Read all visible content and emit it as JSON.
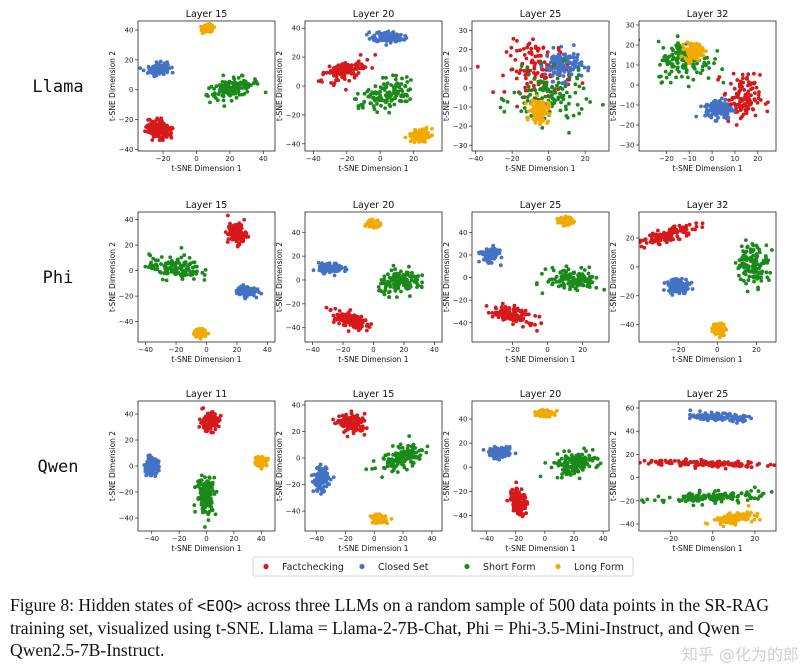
{
  "caption": {
    "prefix": "Figure 8: Hidden states of ",
    "token": "<EOQ>",
    "rest": " across three LLMs on a random sample of 500 data points in the SR-RAG training set, visualized using t-SNE. Llama = Llama-2-7B-Chat, Phi = Phi-3.5-Mini-Instruct, and Qwen = Qwen2.5-7B-Instruct."
  },
  "watermark": "知乎 @化为的郎",
  "chart_data": {
    "type": "scatter",
    "xlabel": "t-SNE Dimension 1",
    "ylabel": "t-SNE Dimension 2",
    "legend": [
      {
        "name": "Factchecking",
        "color": "#d7191c"
      },
      {
        "name": "Closed Set",
        "color": "#4472c4"
      },
      {
        "name": "Short Form",
        "color": "#1a8a1a"
      },
      {
        "name": "Long Form",
        "color": "#f2a900"
      }
    ],
    "rows": [
      {
        "model": "Llama",
        "panels": [
          {
            "title": "Layer 15",
            "xlim": [
              -35,
              47
            ],
            "ylim": [
              -41,
              46
            ],
            "xticks": [
              -20,
              0,
              20,
              40
            ],
            "yticks": [
              -40,
              -20,
              0,
              20,
              40
            ],
            "clusters": [
              {
                "c": 0,
                "cx": -22,
                "cy": -27,
                "rx": 8,
                "ry": 6,
                "n": 125,
                "rot": -25
              },
              {
                "c": 1,
                "cx": -23,
                "cy": 14,
                "rx": 6,
                "ry": 4,
                "n": 125,
                "rot": 10
              },
              {
                "c": 2,
                "cx": 22,
                "cy": 1,
                "rx": 16,
                "ry": 6,
                "n": 125,
                "rot": 15
              },
              {
                "c": 3,
                "cx": 7,
                "cy": 41,
                "rx": 3,
                "ry": 2.5,
                "n": 125,
                "rot": 0
              }
            ]
          },
          {
            "title": "Layer 20",
            "xlim": [
              -45,
              37
            ],
            "ylim": [
              -45,
              45
            ],
            "xticks": [
              -40,
              -20,
              0,
              20
            ],
            "yticks": [
              -40,
              -20,
              0,
              20,
              40
            ],
            "clusters": [
              {
                "c": 0,
                "cx": -22,
                "cy": 10,
                "rx": 14,
                "ry": 6,
                "n": 125,
                "rot": 25
              },
              {
                "c": 1,
                "cx": 5,
                "cy": 34,
                "rx": 9,
                "ry": 4,
                "n": 125,
                "rot": -5
              },
              {
                "c": 2,
                "cx": 3,
                "cy": -7,
                "rx": 16,
                "ry": 10,
                "n": 125,
                "rot": 30
              },
              {
                "c": 3,
                "cx": 24,
                "cy": -34,
                "rx": 6,
                "ry": 4,
                "n": 125,
                "rot": 15
              }
            ]
          },
          {
            "title": "Layer 25",
            "xlim": [
              -42,
              33
            ],
            "ylim": [
              -33,
              35
            ],
            "xticks": [
              -40,
              -20,
              0,
              20
            ],
            "yticks": [
              -30,
              -20,
              -10,
              0,
              10,
              20,
              30
            ],
            "clusters": [
              {
                "c": 0,
                "cx": -5,
                "cy": 10,
                "rx": 18,
                "ry": 14,
                "n": 125,
                "rot": 0
              },
              {
                "c": 1,
                "cx": 8,
                "cy": 12,
                "rx": 10,
                "ry": 8,
                "n": 125,
                "rot": 0
              },
              {
                "c": 2,
                "cx": 0,
                "cy": -6,
                "rx": 20,
                "ry": 14,
                "n": 125,
                "rot": 0
              },
              {
                "c": 3,
                "cx": -5,
                "cy": -12,
                "rx": 5,
                "ry": 6,
                "n": 125,
                "rot": 0
              }
            ]
          },
          {
            "title": "Layer 32",
            "xlim": [
              -32,
              28
            ],
            "ylim": [
              -33,
              32
            ],
            "xticks": [
              -20,
              -10,
              0,
              10,
              20
            ],
            "yticks": [
              -30,
              -20,
              -10,
              0,
              10,
              20,
              30
            ],
            "clusters": [
              {
                "c": 0,
                "cx": 13,
                "cy": -7,
                "rx": 8,
                "ry": 12,
                "n": 125,
                "rot": 0
              },
              {
                "c": 1,
                "cx": 3,
                "cy": -12,
                "rx": 6,
                "ry": 5,
                "n": 125,
                "rot": 0
              },
              {
                "c": 2,
                "cx": -12,
                "cy": 12,
                "rx": 12,
                "ry": 10,
                "n": 125,
                "rot": 0
              },
              {
                "c": 3,
                "cx": -8,
                "cy": 17,
                "rx": 4,
                "ry": 4,
                "n": 125,
                "rot": 0
              }
            ]
          }
        ]
      },
      {
        "model": "Phi",
        "panels": [
          {
            "title": "Layer 15",
            "xlim": [
              -45,
              45
            ],
            "ylim": [
              -56,
              46
            ],
            "xticks": [
              -40,
              -20,
              0,
              20,
              40
            ],
            "yticks": [
              -40,
              -20,
              0,
              20,
              40
            ],
            "clusters": [
              {
                "c": 0,
                "cx": 20,
                "cy": 29,
                "rx": 6,
                "ry": 8,
                "n": 125,
                "rot": 0
              },
              {
                "c": 1,
                "cx": 26,
                "cy": -16,
                "rx": 6,
                "ry": 4,
                "n": 125,
                "rot": 0
              },
              {
                "c": 2,
                "cx": -21,
                "cy": 2,
                "rx": 17,
                "ry": 9,
                "n": 125,
                "rot": -5
              },
              {
                "c": 3,
                "cx": -4,
                "cy": -49,
                "rx": 4,
                "ry": 3,
                "n": 125,
                "rot": 0
              }
            ]
          },
          {
            "title": "Layer 20",
            "xlim": [
              -45,
              45
            ],
            "ylim": [
              -52,
              57
            ],
            "xticks": [
              -40,
              -20,
              0,
              20,
              40
            ],
            "yticks": [
              -40,
              -20,
              0,
              20,
              40
            ],
            "clusters": [
              {
                "c": 0,
                "cx": -16,
                "cy": -33,
                "rx": 12,
                "ry": 6,
                "n": 125,
                "rot": -25
              },
              {
                "c": 1,
                "cx": -28,
                "cy": 10,
                "rx": 8,
                "ry": 4,
                "n": 125,
                "rot": 0
              },
              {
                "c": 2,
                "cx": 19,
                "cy": -2,
                "rx": 16,
                "ry": 9,
                "n": 125,
                "rot": 10
              },
              {
                "c": 3,
                "cx": 0,
                "cy": 47,
                "rx": 4,
                "ry": 3,
                "n": 125,
                "rot": 0
              }
            ]
          },
          {
            "title": "Layer 25",
            "xlim": [
              -43,
              35
            ],
            "ylim": [
              -57,
              58
            ],
            "xticks": [
              -20,
              0,
              20
            ],
            "yticks": [
              -40,
              -20,
              0,
              20,
              40
            ],
            "clusters": [
              {
                "c": 0,
                "cx": -20,
                "cy": -33,
                "rx": 12,
                "ry": 6,
                "n": 125,
                "rot": -30
              },
              {
                "c": 1,
                "cx": -33,
                "cy": 20,
                "rx": 5,
                "ry": 6,
                "n": 125,
                "rot": 0
              },
              {
                "c": 2,
                "cx": 15,
                "cy": -2,
                "rx": 15,
                "ry": 10,
                "n": 125,
                "rot": -5
              },
              {
                "c": 3,
                "cx": 10,
                "cy": 50,
                "rx": 4,
                "ry": 3,
                "n": 125,
                "rot": 0
              }
            ]
          },
          {
            "title": "Layer 32",
            "xlim": [
              -40,
              30
            ],
            "ylim": [
              -52,
              38
            ],
            "xticks": [
              -20,
              0,
              20
            ],
            "yticks": [
              -40,
              -20,
              0,
              20
            ],
            "clusters": [
              {
                "c": 0,
                "cx": -25,
                "cy": 22,
                "rx": 15,
                "ry": 4,
                "n": 125,
                "rot": 22
              },
              {
                "c": 1,
                "cx": -20,
                "cy": -13,
                "rx": 6,
                "ry": 5,
                "n": 125,
                "rot": 10
              },
              {
                "c": 2,
                "cx": 18,
                "cy": 2,
                "rx": 8,
                "ry": 14,
                "n": 125,
                "rot": 0
              },
              {
                "c": 3,
                "cx": 1,
                "cy": -43,
                "rx": 3,
                "ry": 4,
                "n": 125,
                "rot": 0
              }
            ]
          }
        ]
      },
      {
        "model": "Qwen",
        "panels": [
          {
            "title": "Layer 11",
            "xlim": [
              -50,
              50
            ],
            "ylim": [
              -50,
              50
            ],
            "xticks": [
              -40,
              -20,
              0,
              20,
              40
            ],
            "yticks": [
              -40,
              -20,
              0,
              20,
              40
            ],
            "clusters": [
              {
                "c": 0,
                "cx": 2,
                "cy": 34,
                "rx": 7,
                "ry": 7,
                "n": 125,
                "rot": 0
              },
              {
                "c": 1,
                "cx": -40,
                "cy": 0,
                "rx": 5,
                "ry": 6,
                "n": 125,
                "rot": 0
              },
              {
                "c": 2,
                "cx": 0,
                "cy": -22,
                "rx": 7,
                "ry": 15,
                "n": 125,
                "rot": 0
              },
              {
                "c": 3,
                "cx": 40,
                "cy": 3,
                "rx": 4,
                "ry": 3,
                "n": 125,
                "rot": 0
              }
            ]
          },
          {
            "title": "Layer 15",
            "xlim": [
              -48,
              47
            ],
            "ylim": [
              -55,
              43
            ],
            "xticks": [
              -40,
              -20,
              0,
              20,
              40
            ],
            "yticks": [
              -40,
              -20,
              0,
              20,
              40
            ],
            "clusters": [
              {
                "c": 0,
                "cx": -15,
                "cy": 26,
                "rx": 9,
                "ry": 7,
                "n": 125,
                "rot": 0
              },
              {
                "c": 1,
                "cx": -37,
                "cy": -16,
                "rx": 5,
                "ry": 9,
                "n": 125,
                "rot": 0
              },
              {
                "c": 2,
                "cx": 20,
                "cy": 0,
                "rx": 18,
                "ry": 8,
                "n": 125,
                "rot": 25
              },
              {
                "c": 3,
                "cx": 3,
                "cy": -46,
                "rx": 5,
                "ry": 3,
                "n": 125,
                "rot": 0
              }
            ]
          },
          {
            "title": "Layer 20",
            "xlim": [
              -50,
              44
            ],
            "ylim": [
              -53,
              55
            ],
            "xticks": [
              -40,
              -20,
              0,
              20,
              40
            ],
            "yticks": [
              -40,
              -20,
              0,
              20,
              40
            ],
            "clusters": [
              {
                "c": 0,
                "cx": -18,
                "cy": -28,
                "rx": 5,
                "ry": 12,
                "n": 125,
                "rot": 10
              },
              {
                "c": 1,
                "cx": -30,
                "cy": 12,
                "rx": 8,
                "ry": 4,
                "n": 125,
                "rot": 0
              },
              {
                "c": 2,
                "cx": 20,
                "cy": 3,
                "rx": 16,
                "ry": 9,
                "n": 125,
                "rot": 15
              },
              {
                "c": 3,
                "cx": 0,
                "cy": 45,
                "rx": 5,
                "ry": 3,
                "n": 125,
                "rot": 0
              }
            ]
          },
          {
            "title": "Layer 25",
            "xlim": [
              -35,
              30
            ],
            "ylim": [
              -46,
              66
            ],
            "xticks": [
              -20,
              0,
              20
            ],
            "yticks": [
              -40,
              -20,
              0,
              20,
              40,
              60
            ],
            "clusters": [
              {
                "c": 0,
                "cx": -3,
                "cy": 12,
                "rx": 30,
                "ry": 3,
                "n": 125,
                "rot": -3
              },
              {
                "c": 1,
                "cx": 3,
                "cy": 52,
                "rx": 12,
                "ry": 3,
                "n": 125,
                "rot": -5
              },
              {
                "c": 2,
                "cx": 0,
                "cy": -17,
                "rx": 28,
                "ry": 5,
                "n": 125,
                "rot": 5
              },
              {
                "c": 3,
                "cx": 10,
                "cy": -35,
                "rx": 10,
                "ry": 4,
                "n": 125,
                "rot": 15
              }
            ]
          }
        ]
      }
    ]
  }
}
